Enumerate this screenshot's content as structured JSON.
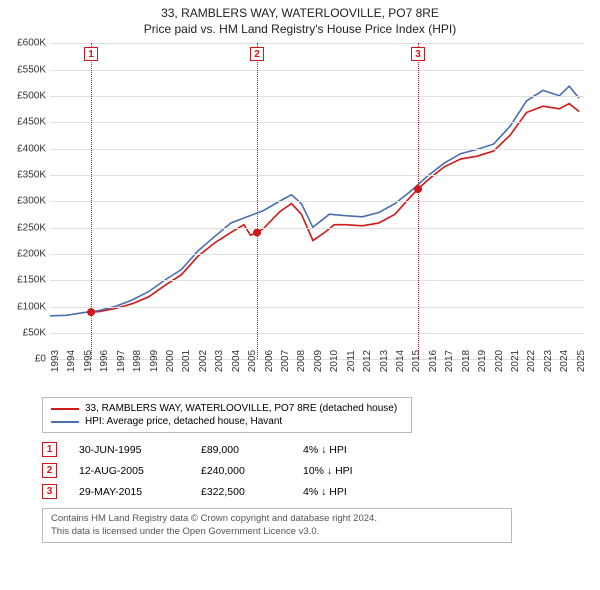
{
  "title": {
    "line1": "33, RAMBLERS WAY, WATERLOOVILLE, PO7 8RE",
    "line2": "Price paid vs. HM Land Registry's House Price Index (HPI)"
  },
  "chart": {
    "type": "line",
    "background_color": "#ffffff",
    "grid_color": "#e0e0e0",
    "xlim": [
      1993,
      2025.5
    ],
    "ylim": [
      0,
      600000
    ],
    "y_ticks": [
      0,
      50000,
      100000,
      150000,
      200000,
      250000,
      300000,
      350000,
      400000,
      450000,
      500000,
      550000,
      600000
    ],
    "y_tick_labels": [
      "£0",
      "£50K",
      "£100K",
      "£150K",
      "£200K",
      "£250K",
      "£300K",
      "£350K",
      "£400K",
      "£450K",
      "£500K",
      "£550K",
      "£600K"
    ],
    "x_ticks": [
      1993,
      1994,
      1995,
      1996,
      1997,
      1998,
      1999,
      2000,
      2001,
      2002,
      2003,
      2004,
      2005,
      2006,
      2007,
      2008,
      2009,
      2010,
      2011,
      2012,
      2013,
      2014,
      2015,
      2016,
      2017,
      2018,
      2019,
      2020,
      2021,
      2022,
      2023,
      2024,
      2025
    ],
    "title_fontsize": 12,
    "label_fontsize": 10,
    "line_width": 1.6,
    "series": [
      {
        "id": "property",
        "label": "33, RAMBLERS WAY, WATERLOOVILLE, PO7 8RE (detached house)",
        "color": "#d01818",
        "points": [
          [
            1995.5,
            89000
          ],
          [
            1996,
            90000
          ],
          [
            1997,
            96000
          ],
          [
            1998,
            105000
          ],
          [
            1999,
            118000
          ],
          [
            2000,
            140000
          ],
          [
            2001,
            160000
          ],
          [
            2002,
            195000
          ],
          [
            2003,
            220000
          ],
          [
            2004,
            240000
          ],
          [
            2004.8,
            255000
          ],
          [
            2005.2,
            235000
          ],
          [
            2005.6,
            240000
          ],
          [
            2006,
            248000
          ],
          [
            2007,
            280000
          ],
          [
            2007.7,
            295000
          ],
          [
            2008.3,
            275000
          ],
          [
            2009,
            225000
          ],
          [
            2009.7,
            240000
          ],
          [
            2010.3,
            255000
          ],
          [
            2011,
            255000
          ],
          [
            2012,
            253000
          ],
          [
            2013,
            258000
          ],
          [
            2014,
            275000
          ],
          [
            2015,
            310000
          ],
          [
            2015.4,
            322500
          ],
          [
            2016,
            340000
          ],
          [
            2017,
            365000
          ],
          [
            2018,
            380000
          ],
          [
            2019,
            385000
          ],
          [
            2020,
            395000
          ],
          [
            2021,
            425000
          ],
          [
            2022,
            468000
          ],
          [
            2023,
            480000
          ],
          [
            2024,
            475000
          ],
          [
            2024.6,
            485000
          ],
          [
            2025.2,
            470000
          ]
        ]
      },
      {
        "id": "hpi",
        "label": "HPI: Average price, detached house, Havant",
        "color": "#4a6fb0",
        "points": [
          [
            1993,
            82000
          ],
          [
            1994,
            83000
          ],
          [
            1995,
            88000
          ],
          [
            1996,
            92000
          ],
          [
            1997,
            100000
          ],
          [
            1998,
            112000
          ],
          [
            1999,
            128000
          ],
          [
            2000,
            150000
          ],
          [
            2001,
            170000
          ],
          [
            2002,
            205000
          ],
          [
            2003,
            232000
          ],
          [
            2004,
            258000
          ],
          [
            2005,
            270000
          ],
          [
            2006,
            282000
          ],
          [
            2007,
            300000
          ],
          [
            2007.7,
            312000
          ],
          [
            2008.3,
            295000
          ],
          [
            2009,
            250000
          ],
          [
            2010,
            275000
          ],
          [
            2011,
            272000
          ],
          [
            2012,
            270000
          ],
          [
            2013,
            278000
          ],
          [
            2014,
            295000
          ],
          [
            2015,
            320000
          ],
          [
            2016,
            348000
          ],
          [
            2017,
            372000
          ],
          [
            2018,
            390000
          ],
          [
            2019,
            398000
          ],
          [
            2020,
            408000
          ],
          [
            2021,
            442000
          ],
          [
            2022,
            490000
          ],
          [
            2023,
            510000
          ],
          [
            2024,
            500000
          ],
          [
            2024.6,
            518000
          ],
          [
            2025.2,
            495000
          ]
        ]
      }
    ],
    "sale_markers": [
      {
        "x": 1995.5,
        "y": 89000,
        "color": "#d01818",
        "r": 4
      },
      {
        "x": 2005.6,
        "y": 240000,
        "color": "#d01818",
        "r": 4
      },
      {
        "x": 2015.4,
        "y": 322500,
        "color": "#d01818",
        "r": 4
      }
    ],
    "event_lines": [
      {
        "n": "1",
        "x": 1995.5,
        "color": "#d01818"
      },
      {
        "n": "2",
        "x": 2005.6,
        "color": "#d01818"
      },
      {
        "n": "3",
        "x": 2015.4,
        "color": "#d01818"
      }
    ]
  },
  "legend": {
    "items": [
      {
        "color": "#d01818",
        "label": "33, RAMBLERS WAY, WATERLOOVILLE, PO7 8RE (detached house)"
      },
      {
        "color": "#4a6fb0",
        "label": "HPI: Average price, detached house, Havant"
      }
    ]
  },
  "events": [
    {
      "n": "1",
      "date": "30-JUN-1995",
      "price": "£89,000",
      "diff": "4% ↓ HPI"
    },
    {
      "n": "2",
      "date": "12-AUG-2005",
      "price": "£240,000",
      "diff": "10% ↓ HPI"
    },
    {
      "n": "3",
      "date": "29-MAY-2015",
      "price": "£322,500",
      "diff": "4% ↓ HPI"
    }
  ],
  "attribution": {
    "line1": "Contains HM Land Registry data © Crown copyright and database right 2024.",
    "line2": "This data is licensed under the Open Government Licence v3.0."
  }
}
